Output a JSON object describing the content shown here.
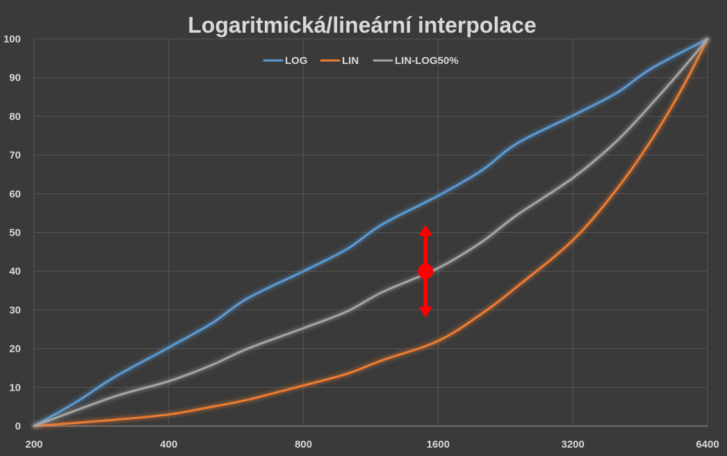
{
  "chart_data": {
    "type": "line",
    "title": "Logaritmická/lineární  interpolace",
    "xscale": "log2",
    "xticks": [
      200,
      400,
      800,
      1600,
      3200,
      6400
    ],
    "xlabels": [
      "200",
      "400",
      "800",
      "1600",
      "3200",
      "6400"
    ],
    "xlim": [
      200,
      6400
    ],
    "yticks": [
      0,
      10,
      20,
      30,
      40,
      50,
      60,
      70,
      80,
      90,
      100
    ],
    "ylabels": [
      "0",
      "10",
      "20",
      "30",
      "40",
      "50",
      "60",
      "70",
      "80",
      "90",
      "100"
    ],
    "ylim": [
      0,
      100
    ],
    "grid": true,
    "legend_position": "top-center",
    "series": [
      {
        "name": "LOG",
        "color": "#5b9bd5",
        "x": [
          200,
          250,
          300,
          400,
          500,
          600,
          800,
          1000,
          1200,
          1600,
          2000,
          2400,
          3200,
          4000,
          4800,
          6400
        ],
        "y": [
          0,
          6.4,
          12.4,
          20.3,
          26.6,
          33,
          40,
          45.7,
          52.1,
          59.5,
          66,
          73,
          80.2,
          86,
          92.4,
          100
        ]
      },
      {
        "name": "LIN",
        "color": "#ed7d31",
        "x": [
          200,
          300,
          400,
          500,
          600,
          800,
          1000,
          1200,
          1600,
          2000,
          2400,
          3200,
          4000,
          4800,
          5600,
          6400
        ],
        "y": [
          0,
          1.6,
          3,
          5,
          6.8,
          10.5,
          13.5,
          17,
          22,
          29,
          36,
          48,
          61,
          74,
          87,
          100
        ]
      },
      {
        "name": "LIN-LOG50%",
        "color": "#a5a5a5",
        "x": [
          200,
          300,
          400,
          500,
          600,
          800,
          1000,
          1200,
          1600,
          2000,
          2400,
          3200,
          4000,
          4800,
          5600,
          6400
        ],
        "y": [
          0,
          7.5,
          11.6,
          15.8,
          20,
          25.3,
          29.6,
          34.6,
          40.8,
          47.5,
          54.5,
          64.1,
          73.5,
          83.2,
          92,
          100
        ]
      }
    ],
    "annotation": {
      "type": "red-double-arrow-with-dot",
      "x": 1500,
      "y": 40,
      "y_top": 52,
      "y_bottom": 28,
      "color": "#ff0000"
    }
  }
}
